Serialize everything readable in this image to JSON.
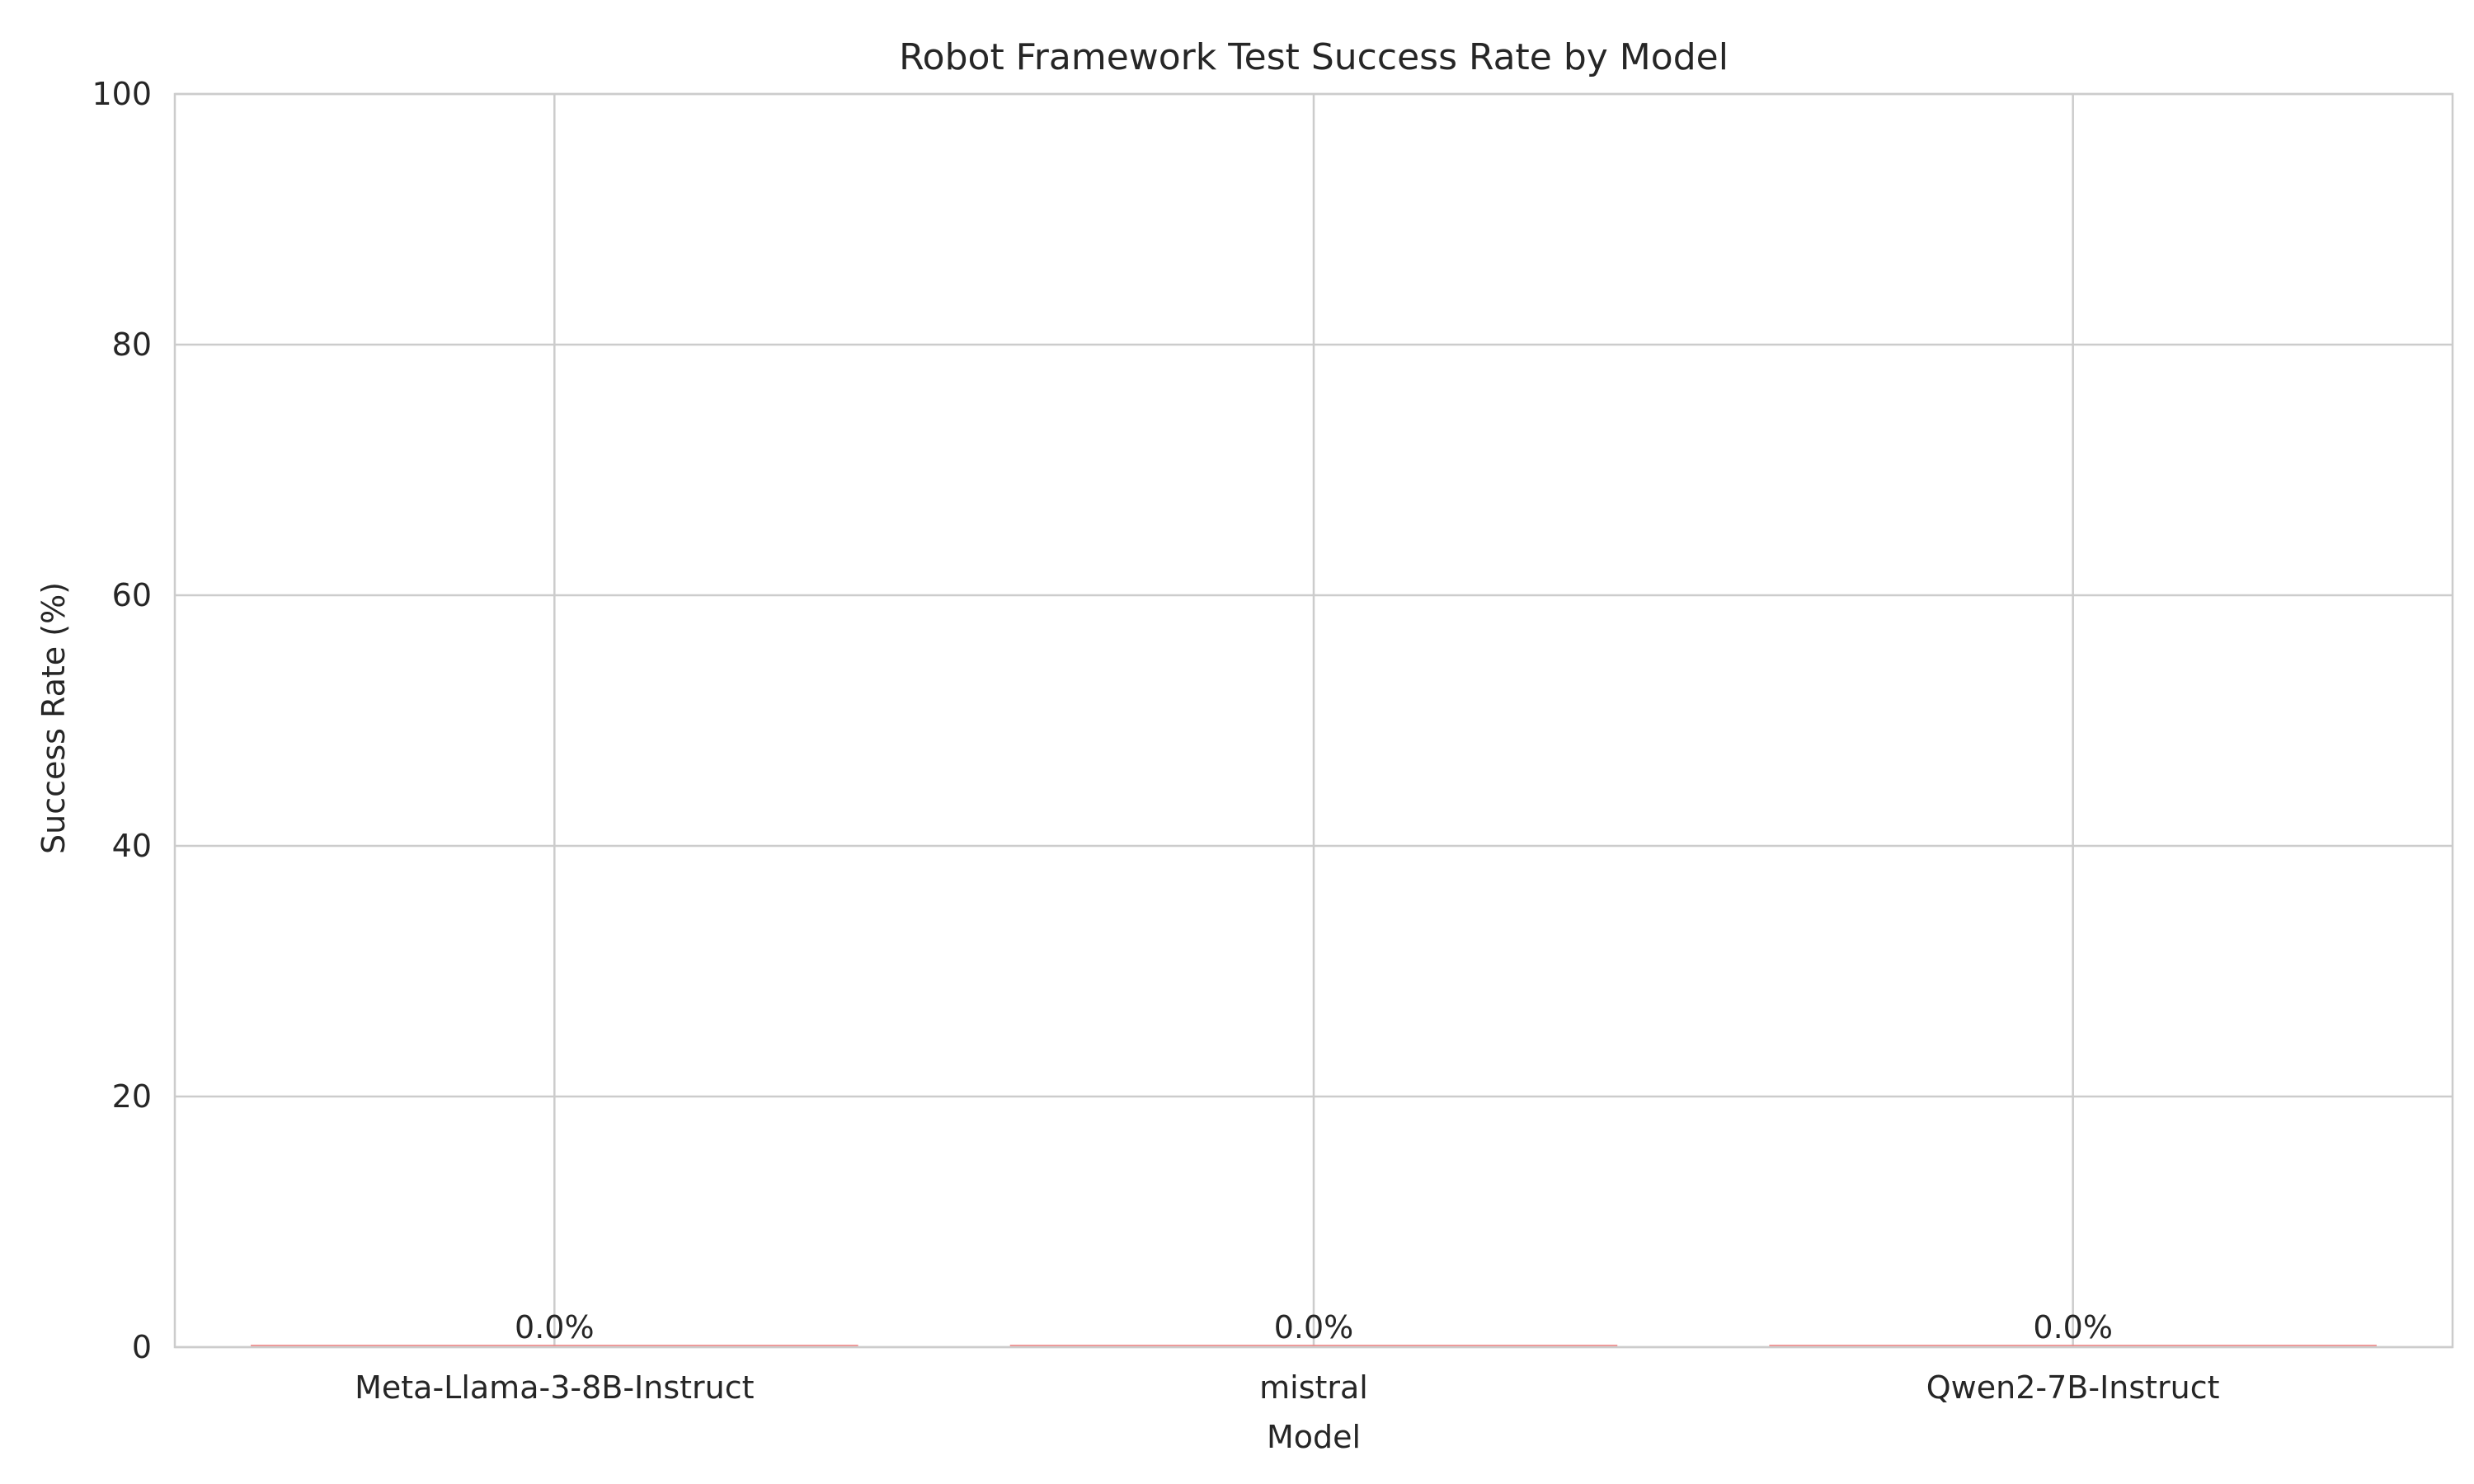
{
  "chart_data": {
    "type": "bar",
    "title": "Robot Framework Test Success Rate by Model",
    "xlabel": "Model",
    "ylabel": "Success Rate (%)",
    "categories": [
      "Meta-Llama-3-8B-Instruct",
      "mistral",
      "Qwen2-7B-Instruct"
    ],
    "values": [
      0.0,
      0.0,
      0.0
    ],
    "data_labels": [
      "0.0%",
      "0.0%",
      "0.0%"
    ],
    "ylim": [
      0,
      100
    ],
    "yticks": [
      0,
      20,
      40,
      60,
      80,
      100
    ],
    "grid": true,
    "bar_color": "#f08080",
    "grid_color": "#cccccc"
  }
}
